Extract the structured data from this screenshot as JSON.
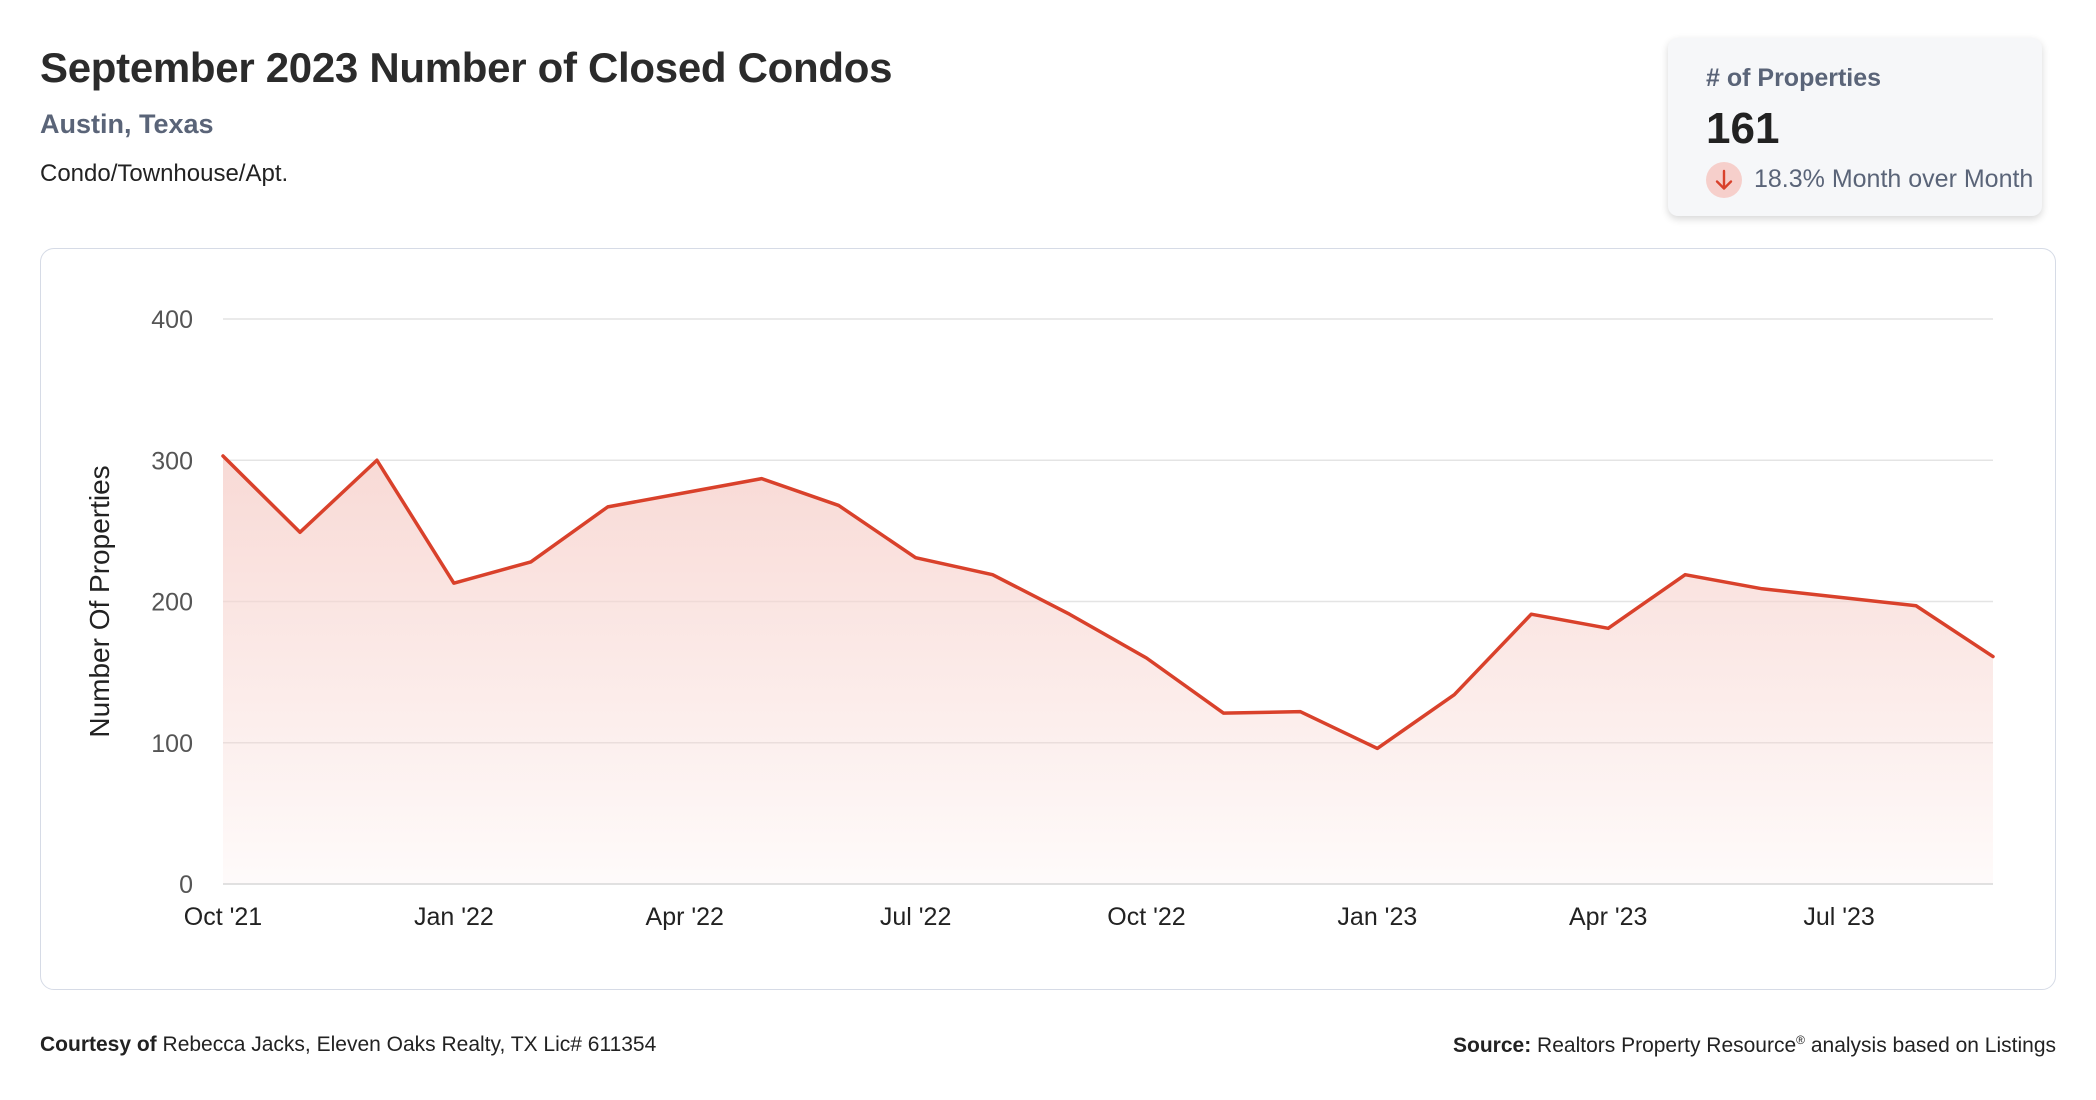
{
  "header": {
    "title": "September 2023 Number of Closed Condos",
    "location": "Austin, Texas",
    "property_type": "Condo/Townhouse/Apt."
  },
  "stat_card": {
    "label": "# of Properties",
    "value": "161",
    "change_text": "18.3% Month over Month",
    "change_icon": "arrow-down-icon",
    "change_color": "#d9412b"
  },
  "footer": {
    "courtesy_label": "Courtesy of",
    "courtesy_text": "Rebecca Jacks, Eleven Oaks Realty, TX Lic# 611354",
    "source_label": "Source:",
    "source_name": "Realtors Property Resource",
    "source_mark": "®",
    "source_text": "analysis based on Listings"
  },
  "colors": {
    "line": "#d9412b",
    "fill": "#f7d3ce",
    "grid": "#e4e4e4",
    "muted_text": "#5a6478"
  },
  "chart_data": {
    "type": "area",
    "x": [
      "Oct '21",
      "Nov '21",
      "Dec '21",
      "Jan '22",
      "Feb '22",
      "Mar '22",
      "Apr '22",
      "May '22",
      "Jun '22",
      "Jul '22",
      "Aug '22",
      "Sep '22",
      "Oct '22",
      "Nov '22",
      "Dec '22",
      "Jan '23",
      "Feb '23",
      "Mar '23",
      "Apr '23",
      "May '23",
      "Jun '23",
      "Jul '23",
      "Aug '23",
      "Sep '23"
    ],
    "series": [
      {
        "values": [
          303,
          249,
          300,
          213,
          228,
          267,
          277,
          287,
          268,
          231,
          219,
          191,
          160,
          121,
          122,
          96,
          134,
          191,
          181,
          219,
          209,
          203,
          197,
          161
        ]
      }
    ],
    "xticks": [
      "Oct '21",
      "Jan '22",
      "Apr '22",
      "Jul '22",
      "Oct '22",
      "Jan '23",
      "Apr '23",
      "Jul '23"
    ],
    "yticks": [
      0,
      100,
      200,
      300,
      400
    ],
    "ylabel": "Number Of Properties",
    "xlabel": "",
    "ylim": [
      0,
      400
    ],
    "grid": true,
    "legend": "none"
  }
}
